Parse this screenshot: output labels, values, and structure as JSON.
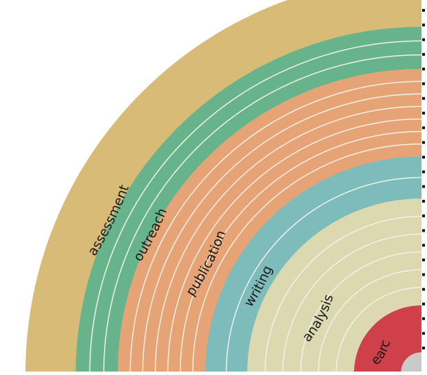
{
  "diagram": {
    "rings": [
      {
        "label": "search",
        "color": "#d0404a",
        "subdivisions": 0
      },
      {
        "label": "analysis",
        "color": "#dcd9b0",
        "subdivisions": 5
      },
      {
        "label": "writing",
        "color": "#7ebcbc",
        "subdivisions": 1
      },
      {
        "label": "publication",
        "color": "#e6a476",
        "subdivisions": 6
      },
      {
        "label": "outreach",
        "color": "#67b48c",
        "subdivisions": 2
      },
      {
        "label": "assessment",
        "color": "#d8bb76",
        "subdivisions": 0
      }
    ],
    "center_color": "#cacaca",
    "divider_color": "#f3f1e7",
    "tick_color": "#111111",
    "tick_count": 24
  }
}
